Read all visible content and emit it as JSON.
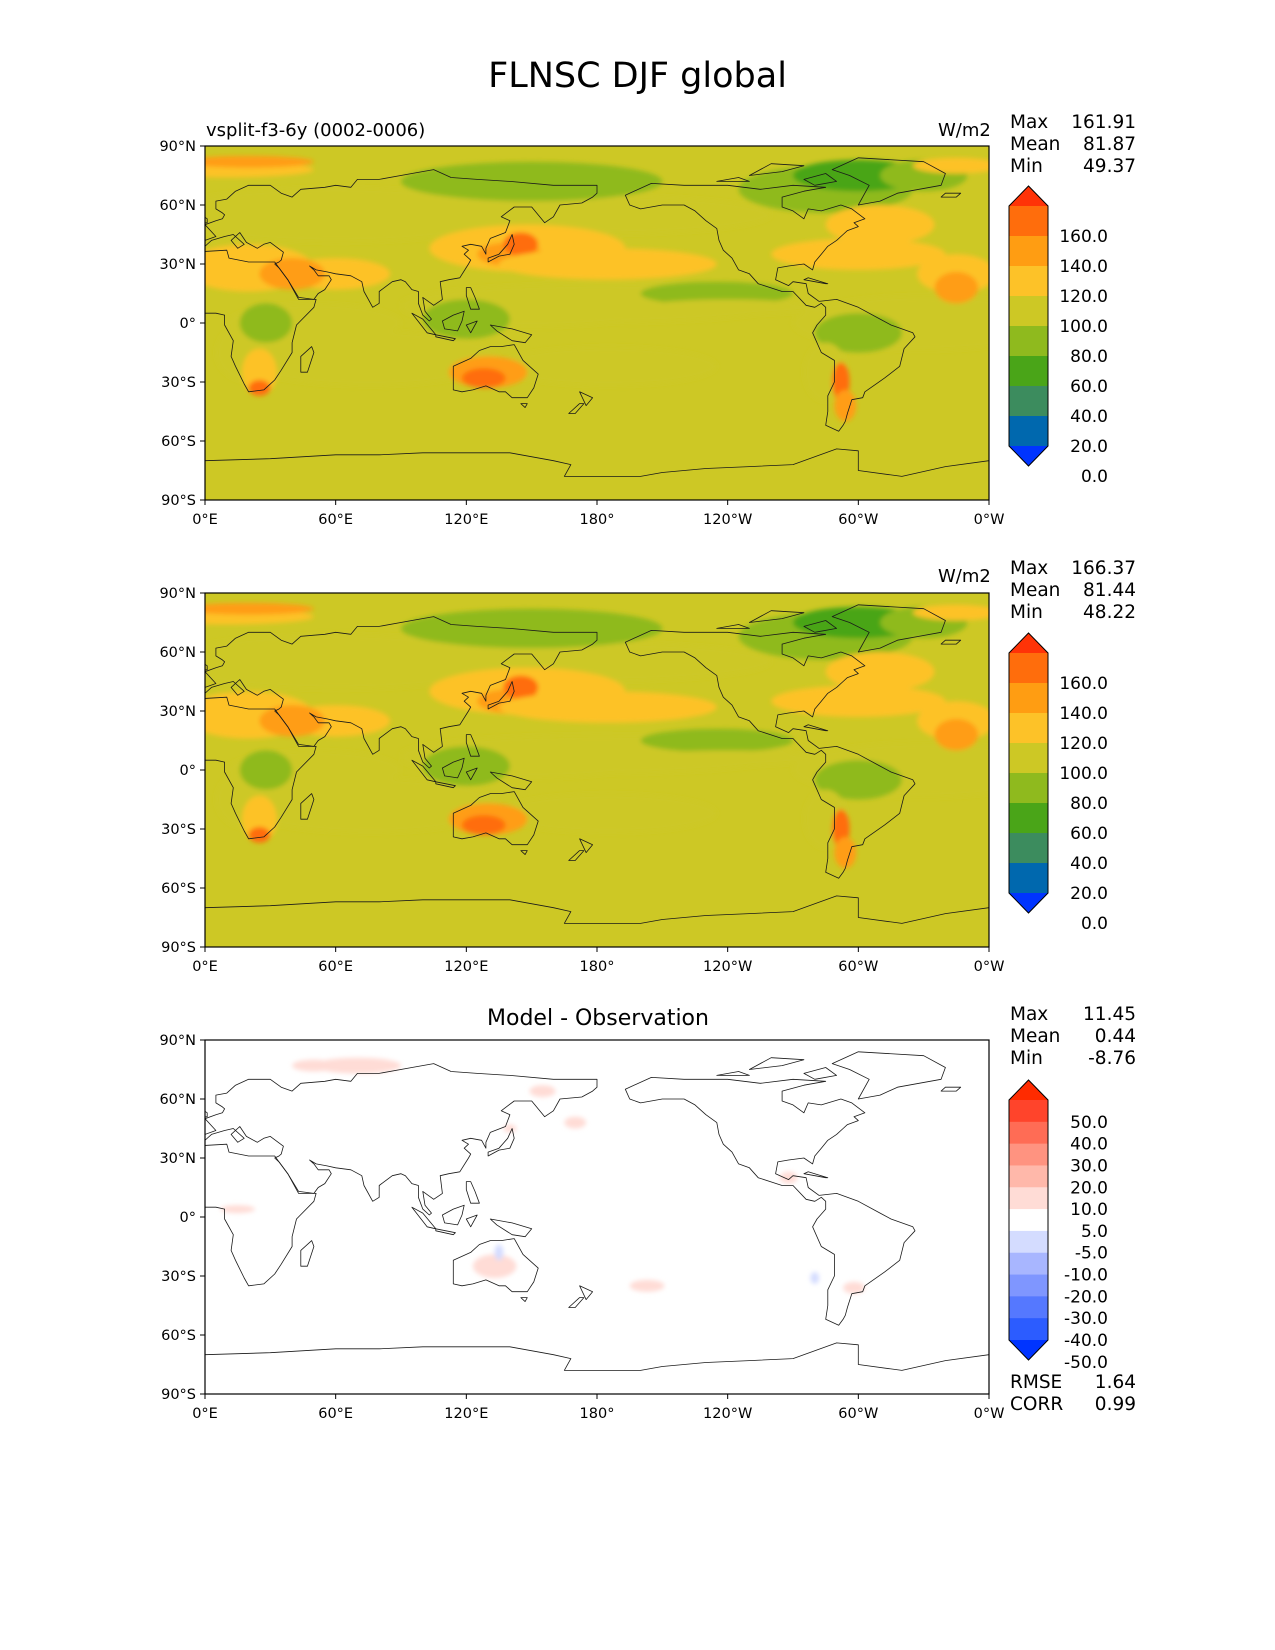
{
  "figure": {
    "title": "FLNSC DJF global"
  },
  "colors": {
    "coastline": "#1a1a1a",
    "field_levels": [
      "#0034ff",
      "#0068ae",
      "#3c8c5e",
      "#4aa518",
      "#8fba1e",
      "#cdc825",
      "#fdc228",
      "#ff9d12",
      "#ff6d0c",
      "#ff3307"
    ],
    "diff_levels": [
      "#0034ff",
      "#2c5cff",
      "#5578ff",
      "#7f96ff",
      "#a8b6ff",
      "#d4dcff",
      "#ffffff",
      "#ffdcd6",
      "#ffb8aa",
      "#ff9380",
      "#ff6c55",
      "#ff442b",
      "#ff2b00"
    ]
  },
  "panels": [
    {
      "subtitle": "vsplit-f3-6y (0002-0006)",
      "units": "W/m2",
      "stats": [
        {
          "label": "Max",
          "value": "161.91"
        },
        {
          "label": "Mean",
          "value": "81.87"
        },
        {
          "label": "Min",
          "value": "49.37"
        }
      ],
      "colorbar": {
        "ticks": [
          "160.0",
          "140.0",
          "120.0",
          "100.0",
          "80.0",
          "60.0",
          "40.0",
          "20.0",
          "0.0"
        ]
      }
    },
    {
      "subtitle": "",
      "units": "W/m2",
      "stats": [
        {
          "label": "Max",
          "value": "166.37"
        },
        {
          "label": "Mean",
          "value": "81.44"
        },
        {
          "label": "Min",
          "value": "48.22"
        }
      ],
      "colorbar": {
        "ticks": [
          "160.0",
          "140.0",
          "120.0",
          "100.0",
          "80.0",
          "60.0",
          "40.0",
          "20.0",
          "0.0"
        ]
      }
    },
    {
      "subtitle": "Model - Observation",
      "units": "",
      "stats": [
        {
          "label": "Max",
          "value": "11.45"
        },
        {
          "label": "Mean",
          "value": "0.44"
        },
        {
          "label": "Min",
          "value": "-8.76"
        }
      ],
      "colorbar": {
        "ticks": [
          "50.0",
          "40.0",
          "30.0",
          "20.0",
          "10.0",
          "5.0",
          "-5.0",
          "-10.0",
          "-20.0",
          "-30.0",
          "-40.0",
          "-50.0"
        ]
      },
      "metrics": [
        {
          "label": "RMSE",
          "value": "1.64"
        },
        {
          "label": "CORR",
          "value": "0.99"
        }
      ]
    }
  ],
  "chart_data": [
    {
      "type": "heatmap",
      "title": "vsplit-f3-6y (0002-0006)",
      "units": "W/m2",
      "x_ticks": [
        "0°E",
        "60°E",
        "120°E",
        "180°",
        "120°W",
        "60°W",
        "0°W"
      ],
      "y_ticks": [
        "90°N",
        "60°N",
        "30°N",
        "0°",
        "30°S",
        "60°S",
        "90°S"
      ],
      "color_levels": [
        0,
        20,
        40,
        60,
        80,
        100,
        120,
        140,
        160
      ],
      "max": 161.91,
      "mean": 81.87,
      "min": 49.37
    },
    {
      "type": "heatmap",
      "title": "",
      "units": "W/m2",
      "x_ticks": [
        "0°E",
        "60°E",
        "120°E",
        "180°",
        "120°W",
        "60°W",
        "0°W"
      ],
      "y_ticks": [
        "90°N",
        "60°N",
        "30°N",
        "0°",
        "30°S",
        "60°S",
        "90°S"
      ],
      "color_levels": [
        0,
        20,
        40,
        60,
        80,
        100,
        120,
        140,
        160
      ],
      "max": 166.37,
      "mean": 81.44,
      "min": 48.22
    },
    {
      "type": "heatmap",
      "title": "Model - Observation",
      "x_ticks": [
        "0°E",
        "60°E",
        "120°E",
        "180°",
        "120°W",
        "60°W",
        "0°W"
      ],
      "y_ticks": [
        "90°N",
        "60°N",
        "30°N",
        "0°",
        "30°S",
        "60°S",
        "90°S"
      ],
      "color_levels": [
        -50,
        -40,
        -30,
        -20,
        -10,
        -5,
        5,
        10,
        20,
        30,
        40,
        50
      ],
      "max": 11.45,
      "mean": 0.44,
      "min": -8.76,
      "rmse": 1.64,
      "corr": 0.99
    }
  ]
}
